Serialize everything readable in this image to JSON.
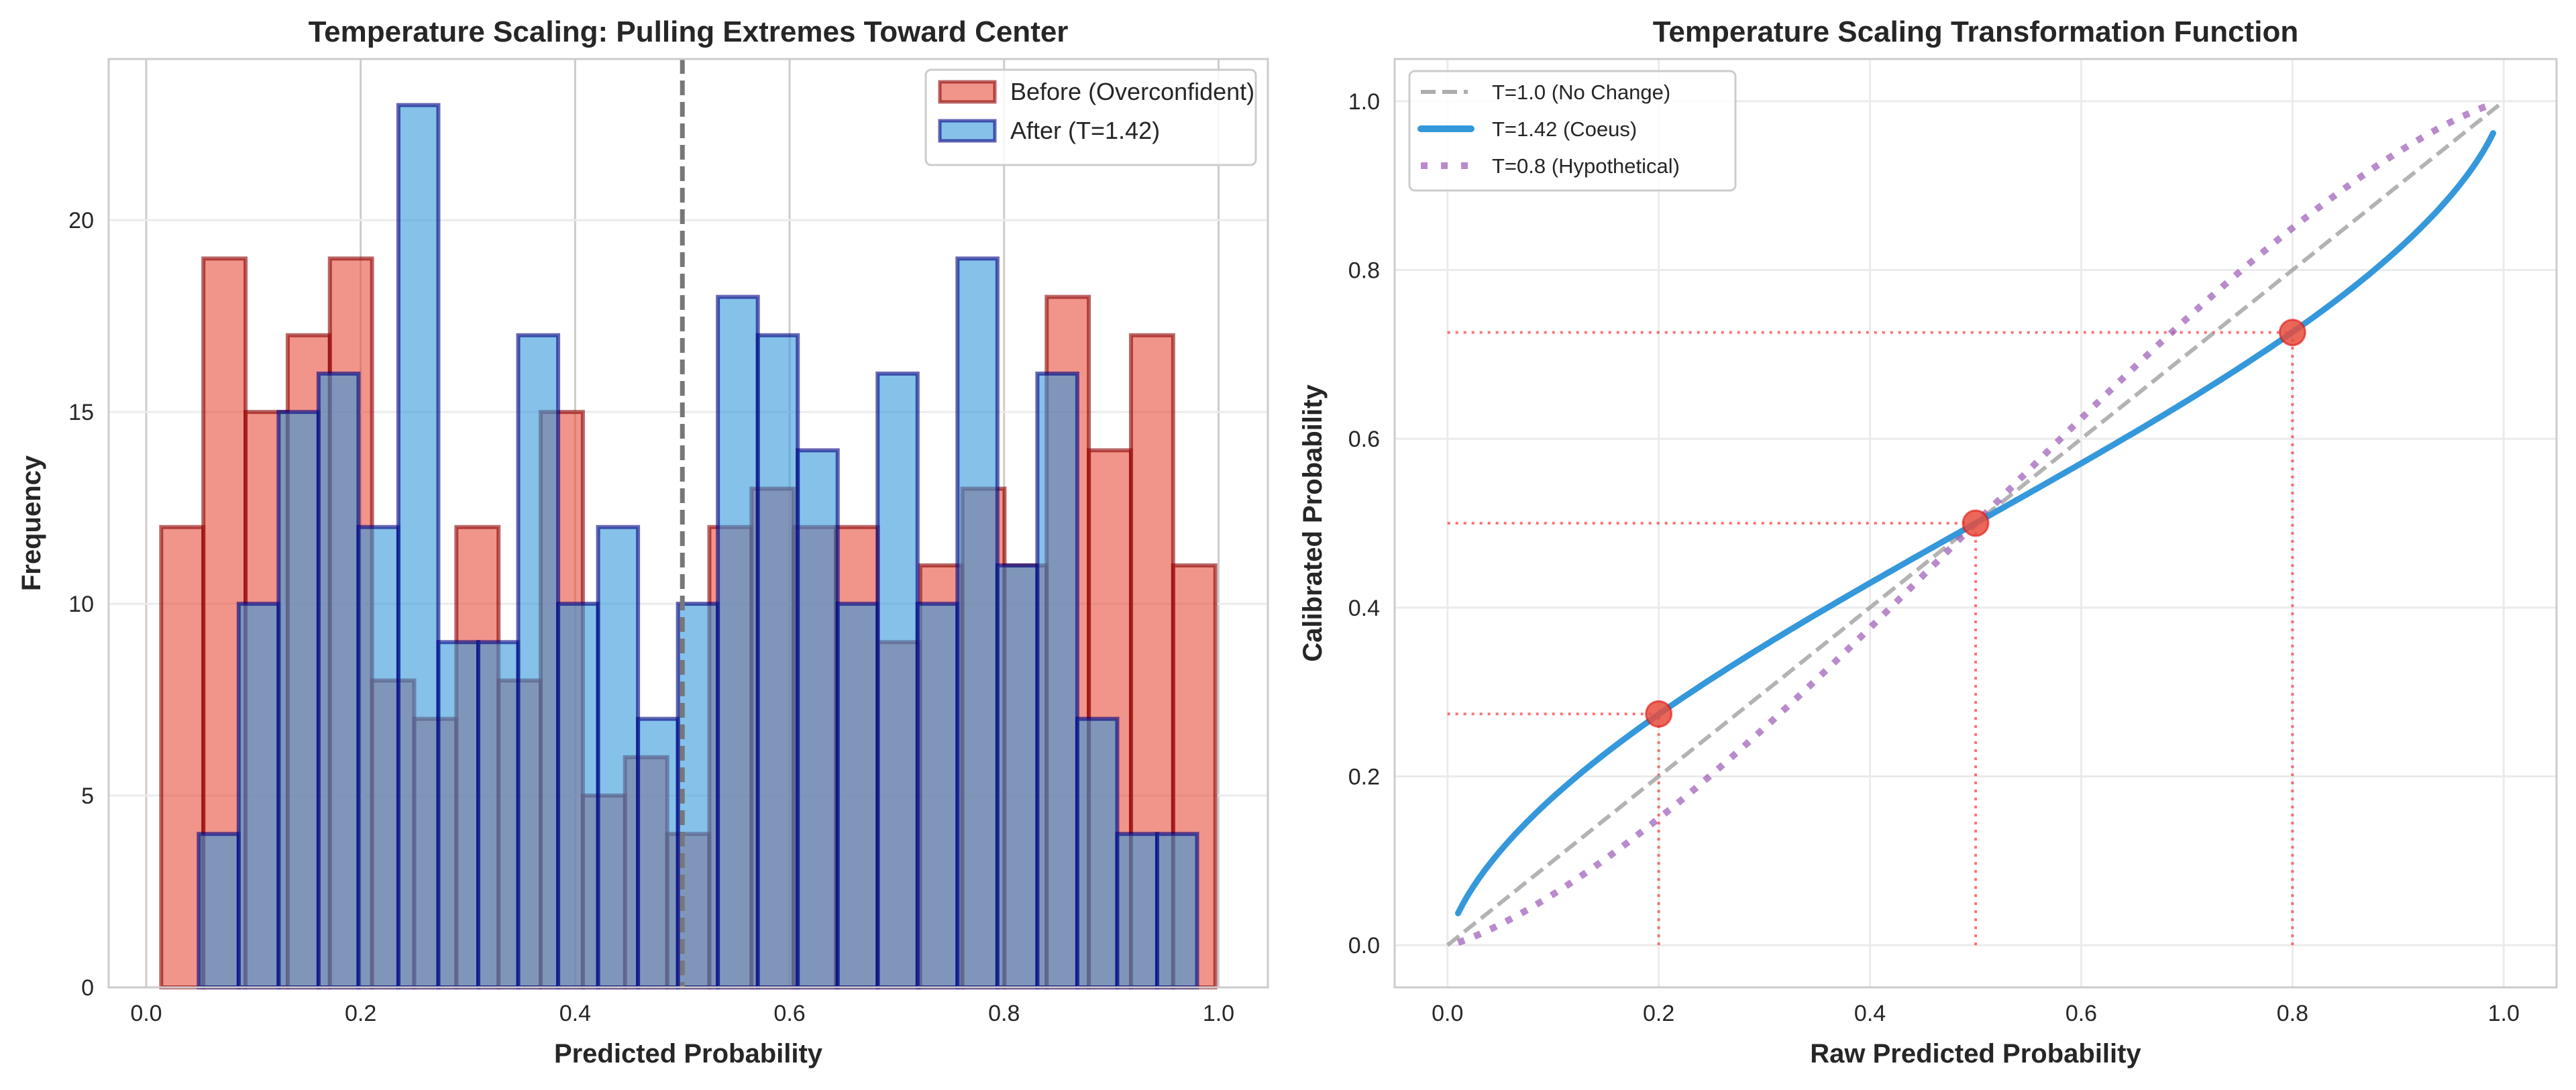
{
  "chart_data": [
    {
      "type": "bar",
      "subtype": "histogram-overlay",
      "title": "Temperature Scaling: Pulling Extremes Toward Center",
      "xlabel": "Predicted Probability",
      "ylabel": "Frequency",
      "xlim": [
        -0.035,
        1.046
      ],
      "ylim": [
        0,
        24.2
      ],
      "xticks": [
        "0.0",
        "0.2",
        "0.4",
        "0.6",
        "0.8",
        "1.0"
      ],
      "yticks": [
        "0",
        "5",
        "10",
        "15",
        "20"
      ],
      "grid": true,
      "legend_position": "top-right",
      "reference_line": {
        "x": 0.5,
        "style": "dashed",
        "color": "#777777"
      },
      "series": [
        {
          "name": "Before (Overconfident)",
          "fill": "#E74C3C",
          "edge": "#8B0000",
          "bin_start": 0.014,
          "bin_end": 0.997,
          "values": [
            12,
            19,
            15,
            17,
            19,
            8,
            7,
            12,
            8,
            15,
            5,
            6,
            4,
            12,
            13,
            12,
            12,
            9,
            11,
            13,
            11,
            18,
            14,
            17,
            11
          ]
        },
        {
          "name": "After (T=1.42)",
          "fill": "#3498DB",
          "edge": "#000080",
          "bin_start": 0.049,
          "bin_end": 0.98,
          "values": [
            4,
            10,
            15,
            16,
            12,
            23,
            9,
            9,
            17,
            10,
            12,
            7,
            10,
            18,
            17,
            14,
            10,
            16,
            10,
            19,
            11,
            16,
            7,
            4,
            4
          ]
        }
      ]
    },
    {
      "type": "line",
      "title": "Temperature Scaling Transformation Function",
      "xlabel": "Raw Predicted Probability",
      "ylabel": "Calibrated Probability",
      "xlim": [
        -0.05,
        1.05
      ],
      "ylim": [
        -0.05,
        1.05
      ],
      "xticks": [
        "0.0",
        "0.2",
        "0.4",
        "0.6",
        "0.8",
        "1.0"
      ],
      "yticks": [
        "0.0",
        "0.2",
        "0.4",
        "0.6",
        "0.8",
        "1.0"
      ],
      "grid": true,
      "legend_position": "top-left",
      "series": [
        {
          "name": "T=1.0 (No Change)",
          "temperature": 1.0,
          "x_range": [
            0,
            1
          ],
          "color": "#999999",
          "style": "dashed"
        },
        {
          "name": "T=1.42 (Coeus)",
          "temperature": 1.42,
          "x_range": [
            0.01,
            0.99
          ],
          "color": "#3498DB",
          "style": "solid"
        },
        {
          "name": "T=0.8 (Hypothetical)",
          "temperature": 0.8,
          "x_range": [
            0.01,
            0.99
          ],
          "color": "#9B59B6",
          "style": "dotted"
        }
      ],
      "highlight_points": [
        {
          "x": 0.2,
          "y": 0.274
        },
        {
          "x": 0.5,
          "y": 0.5
        },
        {
          "x": 0.8,
          "y": 0.726
        }
      ],
      "highlight_color": "#E74C3C"
    }
  ]
}
